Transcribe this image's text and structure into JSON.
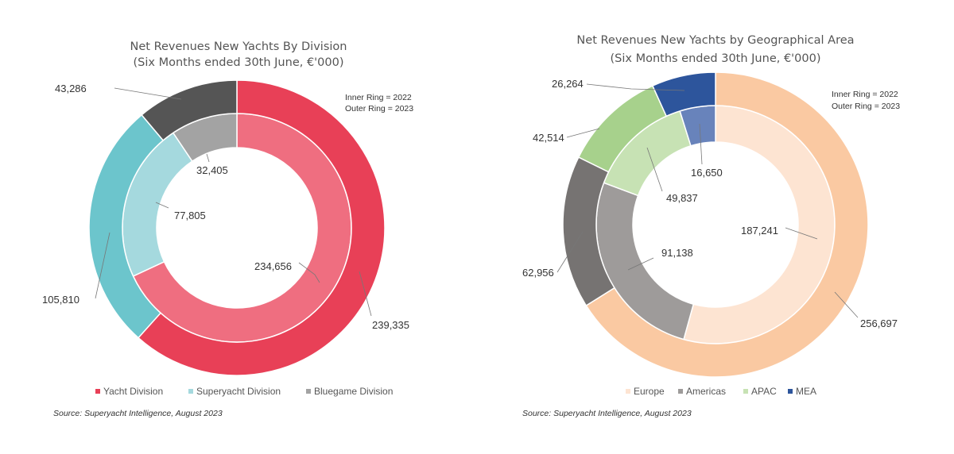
{
  "chart_data": [
    {
      "type": "pie",
      "variant": "nested-donut",
      "title": "Net Revenues New Yachts By Division",
      "subtitle": "(Six Months ended 30th June, €'000)",
      "ring_note": [
        "Inner Ring = 2022",
        "Outer Ring = 2023"
      ],
      "categories": [
        "Yacht Division",
        "Superyacht Division",
        "Bluegame Division"
      ],
      "colors": {
        "outer": [
          "#e84057",
          "#6cc5cc",
          "#555555"
        ],
        "inner": [
          "#ef6e80",
          "#a5d9de",
          "#a3a3a3"
        ]
      },
      "series": [
        {
          "name": "Inner Ring = 2022",
          "values": [
            234656,
            77805,
            32405
          ]
        },
        {
          "name": "Outer Ring = 2023",
          "values": [
            239335,
            105810,
            43286
          ]
        }
      ],
      "labels": {
        "inner": [
          "234,656",
          "77,805",
          "32,405"
        ],
        "outer": [
          "239,335",
          "105,810",
          "43,286"
        ]
      },
      "legend_position": "bottom",
      "source": "Source: Superyacht Intelligence, August 2023"
    },
    {
      "type": "pie",
      "variant": "nested-donut",
      "title": "Net Revenues New Yachts by Geographical Area",
      "subtitle": "(Six Months ended 30th June, €'000)",
      "ring_note": [
        "Inner Ring = 2022",
        "Outer Ring = 2023"
      ],
      "categories": [
        "Europe",
        "Americas",
        "APAC",
        "MEA"
      ],
      "colors": {
        "outer": [
          "#fac9a2",
          "#767372",
          "#a7d18c",
          "#2d559c"
        ],
        "inner": [
          "#fde4d2",
          "#9e9b9a",
          "#c7e2b4",
          "#6883bb"
        ]
      },
      "series": [
        {
          "name": "Inner Ring = 2022",
          "values": [
            187241,
            91138,
            49837,
            16650
          ]
        },
        {
          "name": "Outer Ring = 2023",
          "values": [
            256697,
            62956,
            42514,
            26264
          ]
        }
      ],
      "labels": {
        "inner": [
          "187,241",
          "91,138",
          "49,837",
          "16,650"
        ],
        "outer": [
          "256,697",
          "62,956",
          "42,514",
          "26,264"
        ]
      },
      "legend_position": "bottom",
      "source": "Source: Superyacht Intelligence, August 2023"
    }
  ]
}
